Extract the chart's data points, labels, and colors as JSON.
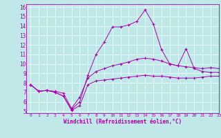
{
  "xlabel": "Windchill (Refroidissement éolien,°C)",
  "xlim": [
    -0.5,
    23
  ],
  "ylim": [
    4.8,
    16.3
  ],
  "yticks": [
    5,
    6,
    7,
    8,
    9,
    10,
    11,
    12,
    13,
    14,
    15,
    16
  ],
  "xticks": [
    0,
    1,
    2,
    3,
    4,
    5,
    6,
    7,
    8,
    9,
    10,
    11,
    12,
    13,
    14,
    15,
    16,
    17,
    18,
    19,
    20,
    21,
    22,
    23
  ],
  "background_color": "#c0e8e8",
  "line_color": "#aa00aa",
  "grid_color": "#e8ffff",
  "lines": [
    {
      "x": [
        0,
        1,
        2,
        3,
        4,
        5,
        6,
        7,
        8,
        9,
        10,
        11,
        12,
        13,
        14,
        15,
        16,
        17,
        18,
        19,
        20,
        21,
        22,
        23
      ],
      "y": [
        7.8,
        7.1,
        7.2,
        7.0,
        6.6,
        5.1,
        5.6,
        7.8,
        8.2,
        8.3,
        8.4,
        8.5,
        8.6,
        8.7,
        8.8,
        8.7,
        8.7,
        8.6,
        8.5,
        8.5,
        8.5,
        8.6,
        8.7,
        8.7
      ]
    },
    {
      "x": [
        0,
        1,
        2,
        3,
        4,
        5,
        6,
        7,
        8,
        9,
        10,
        11,
        12,
        13,
        14,
        15,
        16,
        17,
        18,
        19,
        20,
        21,
        22,
        23
      ],
      "y": [
        7.8,
        7.1,
        7.2,
        7.1,
        6.9,
        5.3,
        6.5,
        8.5,
        9.2,
        9.5,
        9.8,
        10.0,
        10.2,
        10.5,
        10.6,
        10.5,
        10.3,
        10.0,
        9.8,
        9.7,
        9.6,
        9.5,
        9.6,
        9.5
      ]
    },
    {
      "x": [
        0,
        1,
        2,
        3,
        4,
        5,
        6,
        7,
        8,
        9,
        10,
        11,
        12,
        13,
        14,
        15,
        16,
        17,
        18,
        19,
        20,
        21,
        22,
        23
      ],
      "y": [
        7.8,
        7.1,
        7.2,
        7.0,
        6.6,
        5.2,
        6.0,
        8.8,
        11.0,
        12.3,
        13.9,
        13.9,
        14.1,
        14.5,
        15.7,
        14.2,
        11.5,
        10.0,
        9.8,
        11.6,
        9.5,
        9.2,
        9.1,
        9.1
      ]
    }
  ]
}
